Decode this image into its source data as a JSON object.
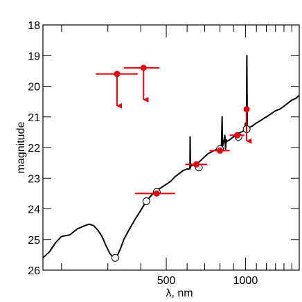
{
  "chart_data": {
    "type": "scatter",
    "title": "",
    "xlabel": "λ, nm",
    "ylabel": "magnitude",
    "x_scale": "log",
    "xlim": [
      170,
      1600
    ],
    "ylim": [
      26,
      18
    ],
    "y_inverted": true,
    "x_ticks": [
      500,
      1000
    ],
    "x_tick_labels": [
      "500",
      "1000"
    ],
    "y_ticks": [
      18,
      19,
      20,
      21,
      22,
      23,
      24,
      25,
      26
    ],
    "y_tick_labels": [
      "18",
      "19",
      "20",
      "21",
      "22",
      "23",
      "24",
      "25",
      "26"
    ],
    "grid": false,
    "legend": "none",
    "colors": {
      "spectrum": "#000000",
      "detections": "#e8000b",
      "model_points": "#ffffff"
    },
    "series": [
      {
        "type": "line",
        "color": "#000000",
        "points": [
          [
            170,
            25.6
          ],
          [
            180,
            25.4
          ],
          [
            190,
            25.1
          ],
          [
            200,
            24.9
          ],
          [
            215,
            24.85
          ],
          [
            230,
            24.65
          ],
          [
            245,
            24.55
          ],
          [
            255,
            24.5
          ],
          [
            265,
            24.55
          ],
          [
            275,
            24.7
          ],
          [
            285,
            24.9
          ],
          [
            295,
            25.2
          ],
          [
            305,
            25.45
          ],
          [
            315,
            25.6
          ],
          [
            325,
            25.55
          ],
          [
            335,
            25.3
          ],
          [
            345,
            25.0
          ],
          [
            360,
            24.7
          ],
          [
            380,
            24.35
          ],
          [
            400,
            24.05
          ],
          [
            420,
            23.75
          ],
          [
            440,
            23.55
          ],
          [
            460,
            23.4
          ],
          [
            480,
            23.3
          ],
          [
            500,
            23.2
          ],
          [
            520,
            23.1
          ],
          [
            540,
            22.95
          ],
          [
            560,
            22.85
          ],
          [
            580,
            22.75
          ],
          [
            600,
            22.7
          ],
          [
            615,
            22.7
          ],
          [
            616,
            21.65
          ],
          [
            618,
            22.65
          ],
          [
            620,
            22.6
          ],
          [
            640,
            22.55
          ],
          [
            660,
            22.5
          ],
          [
            680,
            22.4
          ],
          [
            700,
            22.3
          ],
          [
            720,
            22.2
          ],
          [
            740,
            22.15
          ],
          [
            760,
            22.1
          ],
          [
            780,
            22.05
          ],
          [
            800,
            22.0
          ],
          [
            810,
            21.95
          ],
          [
            815,
            21.0
          ],
          [
            818,
            21.95
          ],
          [
            825,
            21.85
          ],
          [
            835,
            21.6
          ],
          [
            840,
            22.05
          ],
          [
            845,
            21.75
          ],
          [
            850,
            21.8
          ],
          [
            870,
            21.75
          ],
          [
            900,
            21.65
          ],
          [
            930,
            21.55
          ],
          [
            960,
            21.5
          ],
          [
            990,
            21.45
          ],
          [
            1000,
            21.2
          ],
          [
            1008,
            21.4
          ],
          [
            1012,
            19.0
          ],
          [
            1016,
            21.4
          ],
          [
            1030,
            21.35
          ],
          [
            1060,
            21.3
          ],
          [
            1100,
            21.2
          ],
          [
            1150,
            21.1
          ],
          [
            1200,
            21.0
          ],
          [
            1250,
            20.9
          ],
          [
            1300,
            20.8
          ],
          [
            1350,
            20.75
          ],
          [
            1400,
            20.65
          ],
          [
            1450,
            20.55
          ],
          [
            1500,
            20.45
          ],
          [
            1550,
            20.4
          ],
          [
            1600,
            20.3
          ]
        ]
      },
      {
        "type": "scatter",
        "marker": "open-circle",
        "color": "#000000",
        "points": [
          [
            320,
            25.6
          ],
          [
            420,
            23.75
          ],
          [
            460,
            23.45
          ],
          [
            665,
            22.65
          ],
          [
            800,
            22.05
          ],
          [
            940,
            21.65
          ],
          [
            1010,
            21.4
          ]
        ]
      },
      {
        "type": "scatter",
        "marker": "filled-circle",
        "color": "#e8000b",
        "error_bars": "x",
        "points": [
          {
            "x": 460,
            "y": 23.5,
            "xerr": [
              380,
              540
            ]
          },
          {
            "x": 650,
            "y": 22.55,
            "xerr": [
              590,
              715
            ]
          },
          {
            "x": 800,
            "y": 22.1,
            "xerr": [
              730,
              870
            ]
          },
          {
            "x": 930,
            "y": 21.6,
            "xerr": [
              870,
              990
            ]
          },
          {
            "x": 1010,
            "y": 20.75,
            "xerr": [
              990,
              1030
            ],
            "upper_limit": true
          }
        ]
      },
      {
        "type": "scatter",
        "marker": "filled-circle",
        "color": "#e8000b",
        "error_bars": "x",
        "upper_limit": true,
        "points": [
          {
            "x": 325,
            "y": 19.6,
            "xerr": [
              270,
              390
            ]
          },
          {
            "x": 410,
            "y": 19.4,
            "xerr": [
              345,
              470
            ]
          }
        ]
      }
    ]
  }
}
